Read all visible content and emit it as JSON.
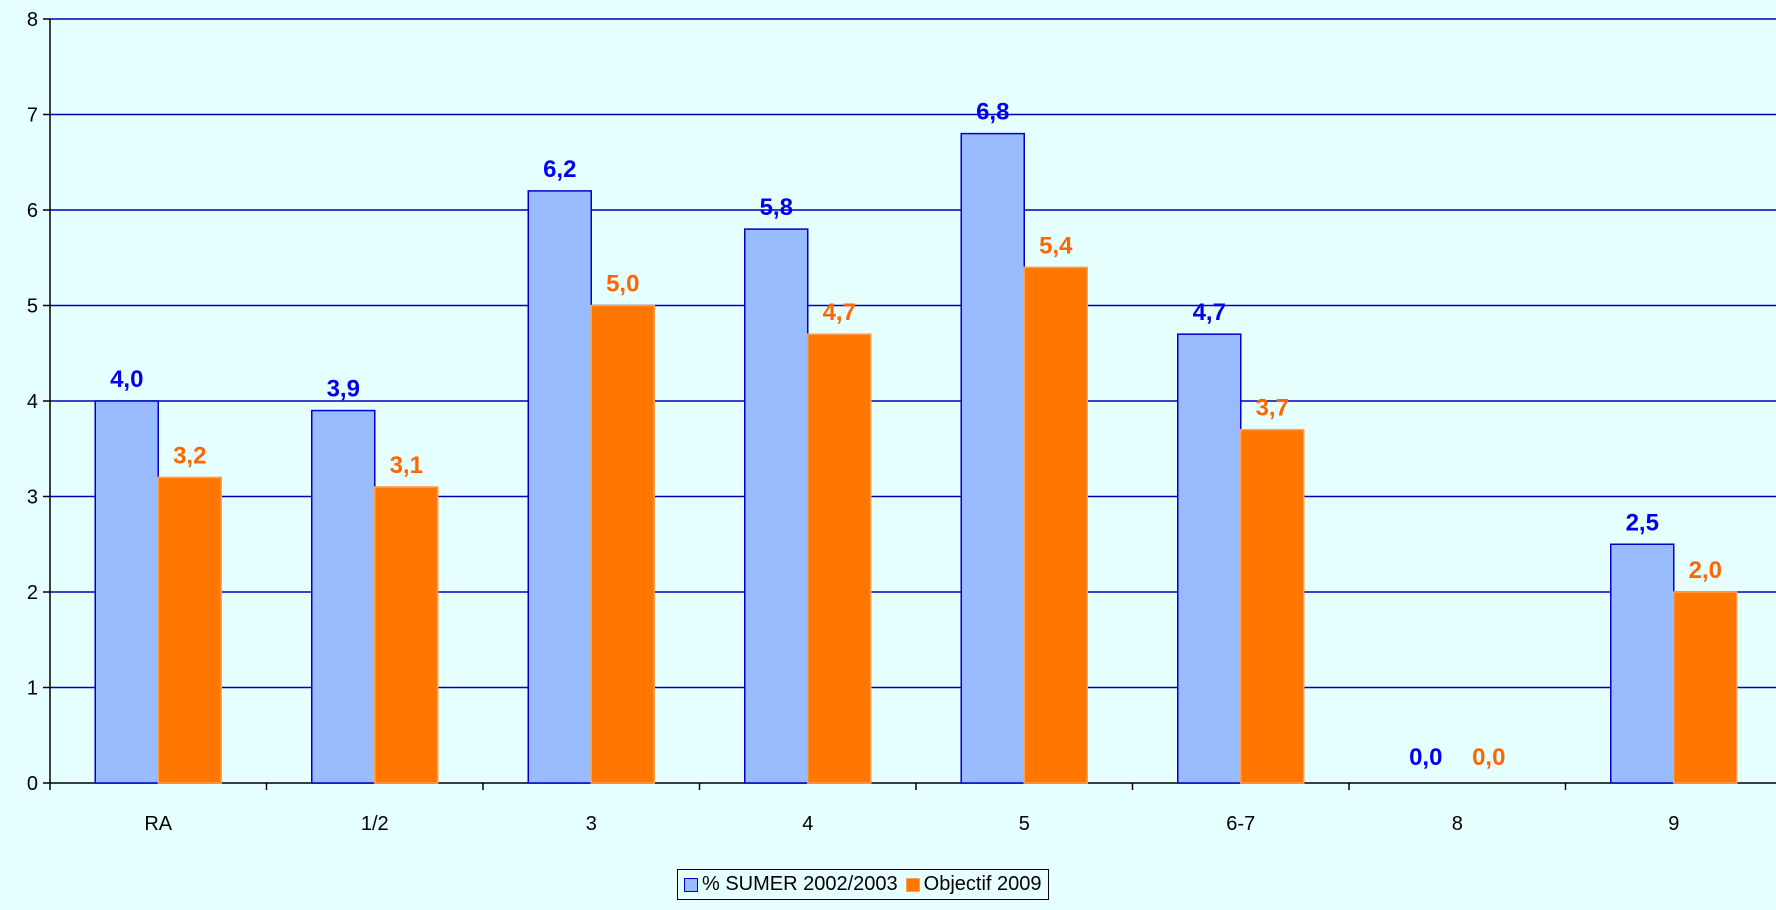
{
  "chart_data": {
    "type": "bar",
    "categories": [
      "RA",
      "1/2",
      "3",
      "4",
      "5",
      "6-7",
      "8",
      "9"
    ],
    "series": [
      {
        "name": "% SUMER 2002/2003",
        "values": [
          4.0,
          3.9,
          6.2,
          5.8,
          6.8,
          4.7,
          0.0,
          2.5
        ],
        "labels": [
          "4,0",
          "3,9",
          "6,2",
          "5,8",
          "6,8",
          "4,7",
          "0,0",
          "2,5"
        ],
        "color": "#99bbff",
        "edge_color": "#0000cc",
        "label_color": "#0000ee"
      },
      {
        "name": "Objectif 2009",
        "values": [
          3.2,
          3.1,
          5.0,
          4.7,
          5.4,
          3.7,
          0.0,
          2.0
        ],
        "labels": [
          "3,2",
          "3,1",
          "5,0",
          "4,7",
          "5,4",
          "3,7",
          "0,0",
          "2,0"
        ],
        "color": "#ff7700",
        "edge_color": "#ffa050",
        "label_color": "#ff6600"
      }
    ],
    "ylim": [
      0,
      8
    ],
    "yticks": [
      "0",
      "1",
      "2",
      "3",
      "4",
      "5",
      "6",
      "7",
      "8"
    ],
    "gridline_color": "#0000bb",
    "grid": true,
    "legend_position": "bottom-center",
    "title": "",
    "xlabel": "",
    "ylabel": ""
  }
}
